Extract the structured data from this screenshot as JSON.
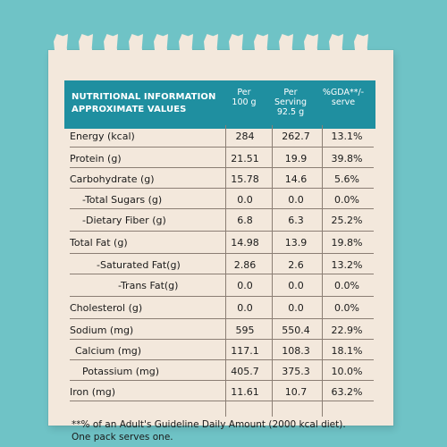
{
  "header": {
    "title_line1": "NUTRITIONAL INFORMATION",
    "title_line2": "APPROXIMATE VALUES",
    "col1_line1": "Per",
    "col1_line2": "100 g",
    "col2_line1": "Per",
    "col2_line2": "Serving",
    "col2_line3": "92.5 g",
    "col3_line1": "%GDA**/-",
    "col3_line2": "serve"
  },
  "rows": [
    {
      "name": "Energy (kcal)",
      "per100": "284",
      "serving": "262.7",
      "gda": "13.1%"
    },
    {
      "name": "Protein (g)",
      "per100": "21.51",
      "serving": "19.9",
      "gda": "39.8%"
    },
    {
      "name": "Carbohydrate (g)",
      "per100": "15.78",
      "serving": "14.6",
      "gda": "5.6%"
    },
    {
      "name": "-Total Sugars (g)",
      "per100": "0.0",
      "serving": "0.0",
      "gda": "0.0%"
    },
    {
      "name": "-Dietary Fiber (g)",
      "per100": "6.8",
      "serving": "6.3",
      "gda": "25.2%"
    },
    {
      "name": "Total Fat (g)",
      "per100": "14.98",
      "serving": "13.9",
      "gda": "19.8%"
    },
    {
      "name": "-Saturated Fat(g)",
      "per100": "2.86",
      "serving": "2.6",
      "gda": "13.2%"
    },
    {
      "name": "-Trans Fat(g)",
      "per100": "0.0",
      "serving": "0.0",
      "gda": "0.0%"
    },
    {
      "name": "Cholesterol (g)",
      "per100": "0.0",
      "serving": "0.0",
      "gda": "0.0%"
    },
    {
      "name": "Sodium (mg)",
      "per100": "595",
      "serving": "550.4",
      "gda": "22.9%"
    },
    {
      "name": "Calcium (mg)",
      "per100": "117.1",
      "serving": "108.3",
      "gda": "18.1%"
    },
    {
      "name": "Potassium (mg)",
      "per100": "405.7",
      "serving": "375.3",
      "gda": "10.0%"
    },
    {
      "name": "Iron (mg)",
      "per100": "11.61",
      "serving": "10.7",
      "gda": "63.2%"
    }
  ],
  "footer": {
    "line1": "**% of an Adult's Guideline Daily Amount (2000 kcal diet).",
    "line2": "One pack serves one."
  },
  "colors": {
    "background": "#6fc3c6",
    "header": "#1f8fa0",
    "paper": "#f3e8dc"
  }
}
